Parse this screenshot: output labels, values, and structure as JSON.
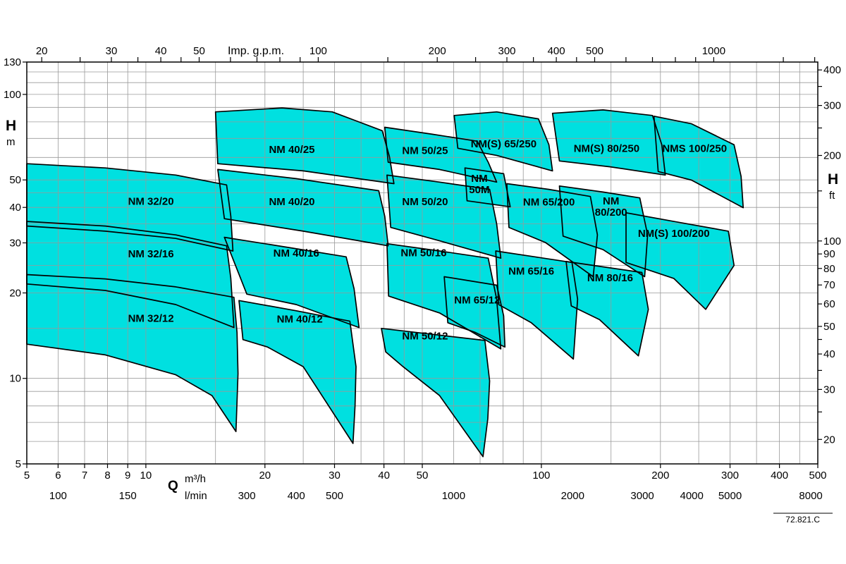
{
  "page": {
    "code": "72.821.C"
  },
  "colors": {
    "region_fill": "#00e0e0",
    "region_stroke": "#000000",
    "grid": "#999999",
    "axis": "#000000",
    "background": "#ffffff"
  },
  "chart_data": {
    "type": "area",
    "title": "",
    "scale": "log-log",
    "grid": "on",
    "x_axis_bottom": {
      "label": "Q",
      "unit": "m³/h",
      "min": 5,
      "max": 500,
      "tick_labels": [
        5,
        6,
        7,
        8,
        9,
        10,
        20,
        30,
        40,
        50,
        100,
        200,
        300,
        400,
        500
      ],
      "gridlines": [
        6,
        7,
        8,
        9,
        10,
        15,
        20,
        25,
        30,
        35,
        40,
        45,
        50,
        60,
        70,
        80,
        90,
        100,
        150,
        200,
        250,
        300,
        350,
        400,
        450
      ]
    },
    "x_axis_lmin": {
      "unit": "l/min",
      "factor_to_m3h": 0.06,
      "tick_labels": [
        100,
        150,
        300,
        400,
        500,
        1000,
        2000,
        3000,
        4000,
        5000,
        8000
      ]
    },
    "x_axis_top": {
      "label": "Imp. g.p.m.",
      "factor_to_m3h": 0.27276,
      "tick_labels": [
        20,
        30,
        40,
        50,
        100,
        200,
        300,
        400,
        500,
        1000
      ],
      "minor_ticks": [
        25,
        35,
        45,
        60,
        70,
        80,
        90,
        150,
        250,
        350,
        450,
        600,
        700,
        800,
        900,
        1500,
        1800
      ]
    },
    "y_axis_left": {
      "label": "H",
      "unit": "m",
      "min": 5,
      "max": 130,
      "tick_labels": [
        130,
        100,
        50,
        40,
        30,
        20,
        10,
        5
      ],
      "gridlines": [
        6,
        7,
        8,
        9,
        10,
        15,
        20,
        25,
        30,
        35,
        40,
        45,
        50,
        60,
        70,
        80,
        90,
        100,
        110,
        120
      ]
    },
    "y_axis_right": {
      "label": "H",
      "unit": "ft",
      "factor_to_m": 0.3048,
      "tick_labels": [
        400,
        300,
        200,
        100,
        90,
        80,
        70,
        60,
        50,
        40,
        30,
        20
      ],
      "minor_ticks": [
        25,
        35,
        45,
        150,
        250,
        350
      ]
    },
    "regions": [
      {
        "label": "NM 32/12",
        "label_at": [
          10.3,
          16.3
        ],
        "points_q_h": [
          [
            5,
            23.2
          ],
          [
            7.9,
            22.4
          ],
          [
            11.9,
            21
          ],
          [
            16.7,
            19.3
          ],
          [
            17,
            14.5
          ],
          [
            17.1,
            10.4
          ],
          [
            16.9,
            6.5
          ],
          [
            14.7,
            8.7
          ],
          [
            11.9,
            10.3
          ],
          [
            7.9,
            12.1
          ],
          [
            5,
            13.2
          ]
        ]
      },
      {
        "label": "NM 32/16",
        "label_at": [
          10.3,
          27.5
        ],
        "points_q_h": [
          [
            5,
            35.7
          ],
          [
            7.9,
            34.4
          ],
          [
            11.9,
            32
          ],
          [
            16,
            29.3
          ],
          [
            16.4,
            22.5
          ],
          [
            16.7,
            15.1
          ],
          [
            11.9,
            18.2
          ],
          [
            7.9,
            20.4
          ],
          [
            5,
            21.5
          ]
        ]
      },
      {
        "label": "NM 32/20",
        "label_at": [
          10.3,
          42.1
        ],
        "points_q_h": [
          [
            5,
            57
          ],
          [
            7.9,
            55.1
          ],
          [
            11.9,
            52
          ],
          [
            16,
            48
          ],
          [
            16.4,
            37.2
          ],
          [
            16.6,
            28.1
          ],
          [
            11.9,
            31.1
          ],
          [
            7.9,
            33
          ],
          [
            5,
            34.4
          ]
        ]
      },
      {
        "label": "NM 40/12",
        "label_at": [
          24.5,
          16.2
        ],
        "points_q_h": [
          [
            17.2,
            18.8
          ],
          [
            24,
            17.3
          ],
          [
            32.8,
            15.9
          ],
          [
            34,
            11
          ],
          [
            33.8,
            8
          ],
          [
            33.4,
            5.9
          ],
          [
            25,
            11
          ],
          [
            20.3,
            12.9
          ],
          [
            17.6,
            13.7
          ]
        ]
      },
      {
        "label": "NM 40/16",
        "label_at": [
          24,
          27.6
        ],
        "points_q_h": [
          [
            15.8,
            31.4
          ],
          [
            23,
            28.9
          ],
          [
            32.1,
            26.8
          ],
          [
            33.6,
            20.7
          ],
          [
            34.6,
            15.1
          ],
          [
            24,
            18.2
          ],
          [
            18,
            19.8
          ]
        ]
      },
      {
        "label": "NM 40/20",
        "label_at": [
          23.4,
          41.9
        ],
        "points_q_h": [
          [
            15.2,
            54.4
          ],
          [
            24,
            50.5
          ],
          [
            38.8,
            45.8
          ],
          [
            40.2,
            37.2
          ],
          [
            41,
            29.3
          ],
          [
            25,
            33
          ],
          [
            15.8,
            36.5
          ]
        ]
      },
      {
        "label": "NM 40/25",
        "label_at": [
          23.4,
          64
        ],
        "points_q_h": [
          [
            15,
            86.8
          ],
          [
            22.1,
            89.6
          ],
          [
            29.6,
            86.8
          ],
          [
            39.6,
            74.5
          ],
          [
            41.3,
            60.4
          ],
          [
            42.4,
            48.5
          ],
          [
            25,
            53.8
          ],
          [
            15.2,
            57
          ]
        ]
      },
      {
        "label": "NM 50/12",
        "label_at": [
          50.8,
          14.1
        ],
        "points_q_h": [
          [
            39.4,
            15
          ],
          [
            53,
            14.3
          ],
          [
            72,
            13.6
          ],
          [
            74,
            9.8
          ],
          [
            73.2,
            7.2
          ],
          [
            71.2,
            5.3
          ],
          [
            55.3,
            8.7
          ],
          [
            44.7,
            11
          ],
          [
            40.4,
            12.4
          ]
        ]
      },
      {
        "label": "NM 50/16",
        "label_at": [
          50.4,
          27.7
        ],
        "points_q_h": [
          [
            40.7,
            29.8
          ],
          [
            55.3,
            28.1
          ],
          [
            73.4,
            26.5
          ],
          [
            77.1,
            19
          ],
          [
            79,
            12.7
          ],
          [
            55.3,
            17
          ],
          [
            41.1,
            19.5
          ]
        ]
      },
      {
        "label": "NM 50/20",
        "label_at": [
          50.8,
          41.9
        ],
        "points_q_h": [
          [
            40.7,
            52
          ],
          [
            55.3,
            49.1
          ],
          [
            74,
            46.3
          ],
          [
            77.1,
            35
          ],
          [
            79,
            26.5
          ],
          [
            55.3,
            30.5
          ],
          [
            41.6,
            34
          ]
        ]
      },
      {
        "label": "NM 50/25",
        "label_at": [
          50.8,
          63.4
        ],
        "points_q_h": [
          [
            40.2,
            76.6
          ],
          [
            53,
            72.4
          ],
          [
            68.8,
            68.4
          ],
          [
            73.4,
            57.7
          ],
          [
            77.1,
            49.1
          ],
          [
            55.3,
            54.4
          ],
          [
            41,
            57.7
          ]
        ]
      },
      {
        "label": "NM 50M",
        "label_lines": [
          "NM",
          "50M"
        ],
        "label_at": [
          69.7,
          48.3
        ],
        "points_q_h": [
          [
            64.1,
            55.1
          ],
          [
            80.3,
            52.6
          ],
          [
            83.4,
            40.2
          ],
          [
            64.9,
            42.2
          ]
        ]
      },
      {
        "label": "NM 65/12",
        "label_at": [
          68.8,
          18.9
        ],
        "points_q_h": [
          [
            56.8,
            22.8
          ],
          [
            77.1,
            21.3
          ],
          [
            80.3,
            16.6
          ],
          [
            80.9,
            12.9
          ],
          [
            68.2,
            14.5
          ],
          [
            58,
            15.7
          ]
        ]
      },
      {
        "label": "NM 65/16",
        "label_at": [
          94.3,
          23.9
        ],
        "points_q_h": [
          [
            76.7,
            28.1
          ],
          [
            96.3,
            26.8
          ],
          [
            119.5,
            25.6
          ],
          [
            123.5,
            19
          ],
          [
            120.5,
            11.7
          ],
          [
            94.3,
            15.7
          ],
          [
            78,
            18.2
          ]
        ]
      },
      {
        "label": "NM 65/200",
        "label_at": [
          104.5,
          41.8
        ],
        "points_q_h": [
          [
            81.8,
            48.5
          ],
          [
            104.5,
            46.3
          ],
          [
            133,
            43.7
          ],
          [
            138.6,
            32
          ],
          [
            135.2,
            22.8
          ],
          [
            102.4,
            30.1
          ],
          [
            82.8,
            34
          ]
        ]
      },
      {
        "label": "NM(S) 65/250",
        "label_at": [
          80.3,
          66.9
        ],
        "points_q_h": [
          [
            60.2,
            84.3
          ],
          [
            77.1,
            86.8
          ],
          [
            98.3,
            82
          ],
          [
            104.5,
            66.5
          ],
          [
            106.7,
            53.8
          ],
          [
            77.1,
            61
          ],
          [
            61.5,
            64.6
          ]
        ]
      },
      {
        "label": "NM(S) 80/250",
        "label_at": [
          146.2,
          64.5
        ],
        "points_q_h": [
          [
            106.7,
            85.8
          ],
          [
            143.2,
            88.2
          ],
          [
            191,
            84.3
          ],
          [
            201.6,
            66.5
          ],
          [
            205.8,
            52
          ],
          [
            149.2,
            55.6
          ],
          [
            111.1,
            58.3
          ]
        ]
      },
      {
        "label": "NM 80/200",
        "label_lines": [
          "NM",
          "80/200"
        ],
        "label_at": [
          150,
          40.3
        ],
        "points_q_h": [
          [
            111.1,
            47.6
          ],
          [
            143.2,
            45.3
          ],
          [
            177.4,
            43.2
          ],
          [
            185.6,
            32
          ],
          [
            182.5,
            22.8
          ],
          [
            143.2,
            28.4
          ],
          [
            113.5,
            31.7
          ]
        ]
      },
      {
        "label": "NM 80/16",
        "label_at": [
          149.2,
          22.6
        ],
        "points_q_h": [
          [
            115.5,
            25.8
          ],
          [
            143.2,
            24.7
          ],
          [
            179.6,
            23.6
          ],
          [
            186.4,
            17.5
          ],
          [
            175.9,
            12
          ],
          [
            140.3,
            16.1
          ],
          [
            119,
            18
          ]
        ]
      },
      {
        "label": "NMS 100/250",
        "label_at": [
          244,
          64.5
        ],
        "points_q_h": [
          [
            192.6,
            83.8
          ],
          [
            239.7,
            78.8
          ],
          [
            307,
            66.5
          ],
          [
            319.9,
            51.4
          ],
          [
            323.9,
            39.9
          ],
          [
            239.7,
            49.9
          ],
          [
            197.4,
            53.5
          ]
        ]
      },
      {
        "label": "NM(S) 100/200",
        "label_at": [
          216.2,
          32.4
        ],
        "points_q_h": [
          [
            163.7,
            38.3
          ],
          [
            216.2,
            35.7
          ],
          [
            297,
            33
          ],
          [
            307,
            25
          ],
          [
            260.3,
            17.5
          ],
          [
            216.2,
            22.5
          ],
          [
            163.7,
            25.6
          ]
        ]
      }
    ]
  }
}
